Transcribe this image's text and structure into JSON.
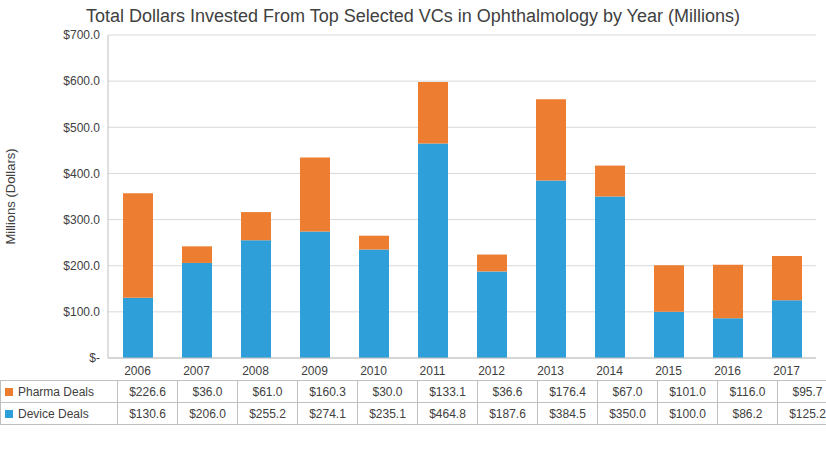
{
  "chart_data": {
    "type": "bar",
    "title": "Total Dollars Invested From Top Selected VCs in Ophthalmology by Year (Millions)",
    "y_label": "Millions (Dollars)",
    "categories": [
      "2006",
      "2007",
      "2008",
      "2009",
      "2010",
      "2011",
      "2012",
      "2013",
      "2014",
      "2015",
      "2016",
      "2017"
    ],
    "series": [
      {
        "name": "Pharma Deals",
        "color": "#ed7d31",
        "values": [
          226.6,
          36.0,
          61.0,
          160.3,
          30.0,
          133.1,
          36.6,
          176.4,
          67.0,
          101.0,
          116.0,
          95.7
        ],
        "value_labels": [
          "$226.6",
          "$36.0",
          "$61.0",
          "$160.3",
          "$30.0",
          "$133.1",
          "$36.6",
          "$176.4",
          "$67.0",
          "$101.0",
          "$116.0",
          "$95.7"
        ]
      },
      {
        "name": "Device Deals",
        "color": "#2e9fd8",
        "values": [
          130.6,
          206.0,
          255.2,
          274.1,
          235.1,
          464.8,
          187.6,
          384.5,
          350.0,
          100.0,
          86.2,
          125.2
        ],
        "value_labels": [
          "$130.6",
          "$206.0",
          "$255.2",
          "$274.1",
          "$235.1",
          "$464.8",
          "$187.6",
          "$384.5",
          "$350.0",
          "$100.0",
          "$86.2",
          "$125.2"
        ]
      }
    ],
    "stacked": true,
    "ylim": [
      0,
      700
    ],
    "yticks": [
      {
        "value": 0,
        "label": "$-"
      },
      {
        "value": 100,
        "label": "$100.0"
      },
      {
        "value": 200,
        "label": "$200.0"
      },
      {
        "value": 300,
        "label": "$300.0"
      },
      {
        "value": 400,
        "label": "$400.0"
      },
      {
        "value": 500,
        "label": "$500.0"
      },
      {
        "value": 600,
        "label": "$600.0"
      },
      {
        "value": 700,
        "label": "$700.0"
      }
    ],
    "grid": true
  }
}
